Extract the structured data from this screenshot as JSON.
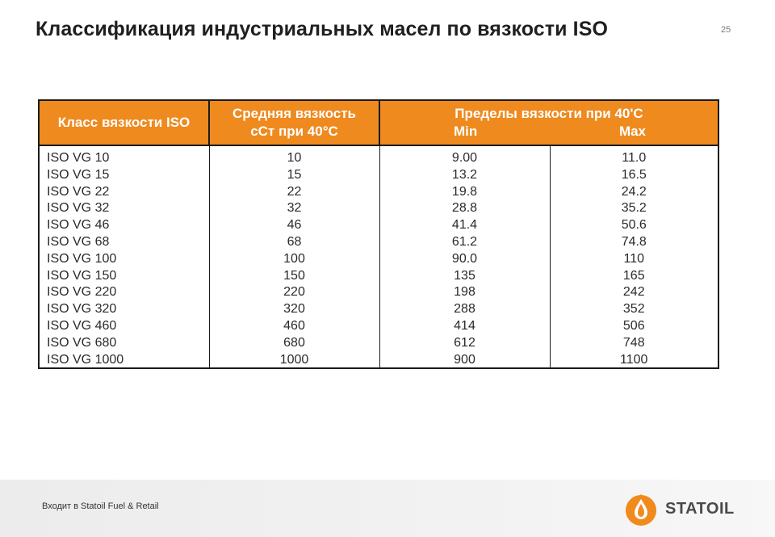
{
  "slide": {
    "title": "Классификация индустриальных масел по вязкости  ISO",
    "page_number": "25"
  },
  "table": {
    "headers": {
      "class": "Класс вязкости ISO",
      "avg_line1": "Средняя вязкость",
      "avg_line2": "сСт при 40°С",
      "limits_line1": "Пределы вязкости при  40'С",
      "min": "Min",
      "max": "Max"
    },
    "rows": [
      {
        "class": "ISO VG 10",
        "avg": "10",
        "min": "9.00",
        "max": "11.0"
      },
      {
        "class": "ISO VG 15",
        "avg": "15",
        "min": "13.2",
        "max": "16.5"
      },
      {
        "class": "ISO VG 22",
        "avg": "22",
        "min": "19.8",
        "max": "24.2"
      },
      {
        "class": "ISO VG 32",
        "avg": "32",
        "min": "28.8",
        "max": "35.2"
      },
      {
        "class": "ISO VG 46",
        "avg": "46",
        "min": "41.4",
        "max": "50.6"
      },
      {
        "class": "ISO VG 68",
        "avg": "68",
        "min": "61.2",
        "max": "74.8"
      },
      {
        "class": "ISO VG 100",
        "avg": "100",
        "min": "90.0",
        "max": "110"
      },
      {
        "class": "ISO VG 150",
        "avg": "150",
        "min": "135",
        "max": "165"
      },
      {
        "class": "ISO VG 220",
        "avg": "220",
        "min": "198",
        "max": "242"
      },
      {
        "class": "ISO VG 320",
        "avg": "320",
        "min": "288",
        "max": "352"
      },
      {
        "class": "ISO VG 460",
        "avg": "460",
        "min": "414",
        "max": "506"
      },
      {
        "class": "ISO VG 680",
        "avg": "680",
        "min": "612",
        "max": "748"
      },
      {
        "class": "ISO VG 1000",
        "avg": "1000",
        "min": "900",
        "max": "1100"
      }
    ]
  },
  "footer": {
    "text": "Входит в Statoil Fuel & Retail",
    "logo_text": "STATOIL"
  },
  "colors": {
    "header_bg": "#ef8a1f",
    "logo_orange": "#f08a1c"
  },
  "icons": {
    "logo": "statoil-drop-logo-icon"
  }
}
